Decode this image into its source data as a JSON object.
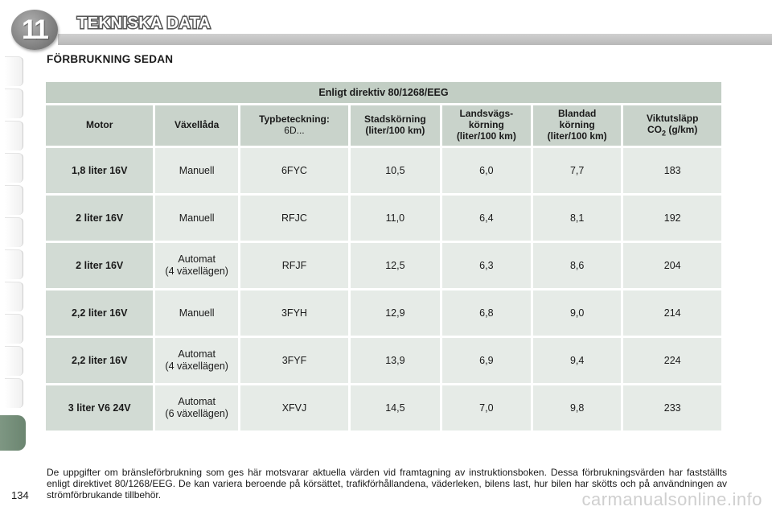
{
  "header": {
    "chapter_number": "11",
    "title": "TEKNISKA DATA"
  },
  "section": {
    "title": "FÖRBRUKNING SEDAN"
  },
  "table": {
    "directive": "Enligt direktiv 80/1268/EEG",
    "columns": [
      {
        "lines": [
          "Motor"
        ]
      },
      {
        "lines": [
          "Växellåda"
        ]
      },
      {
        "lines": [
          "Typbeteckning:"
        ],
        "sub": "6D..."
      },
      {
        "lines": [
          "Stadskörning",
          "(liter/100 km)"
        ]
      },
      {
        "lines": [
          "Landsvägs-",
          "körning",
          "(liter/100 km)"
        ]
      },
      {
        "lines": [
          "Blandad",
          "körning",
          "(liter/100 km)"
        ]
      },
      {
        "lines": [
          "Viktutsläpp",
          "CO2 (g/km)"
        ]
      }
    ],
    "rows": [
      {
        "motor": "1,8 liter 16V",
        "gearbox": [
          "Manuell"
        ],
        "type": "6FYC",
        "city": "10,5",
        "highway": "6,0",
        "mixed": "7,7",
        "co2": "183"
      },
      {
        "motor": "2 liter 16V",
        "gearbox": [
          "Manuell"
        ],
        "type": "RFJC",
        "city": "11,0",
        "highway": "6,4",
        "mixed": "8,1",
        "co2": "192"
      },
      {
        "motor": "2 liter 16V",
        "gearbox": [
          "Automat",
          "(4 växellägen)"
        ],
        "type": "RFJF",
        "city": "12,5",
        "highway": "6,3",
        "mixed": "8,6",
        "co2": "204"
      },
      {
        "motor": "2,2 liter 16V",
        "gearbox": [
          "Manuell"
        ],
        "type": "3FYH",
        "city": "12,9",
        "highway": "6,8",
        "mixed": "9,0",
        "co2": "214"
      },
      {
        "motor": "2,2 liter 16V",
        "gearbox": [
          "Automat",
          "(4 växellägen)"
        ],
        "type": "3FYF",
        "city": "13,9",
        "highway": "6,9",
        "mixed": "9,4",
        "co2": "224"
      },
      {
        "motor": "3 liter V6 24V",
        "gearbox": [
          "Automat",
          "(6 växellägen)"
        ],
        "type": "XFVJ",
        "city": "14,5",
        "highway": "7,0",
        "mixed": "9,8",
        "co2": "233"
      }
    ]
  },
  "footnote": "De uppgifter om bränsleförbrukning som ges här motsvarar aktuella värden vid framtagning av instruktionsboken. Dessa förbrukningsvärden har fastställts enligt direktivet 80/1268/EEG. De kan variera beroende på körsättet, trafikförhållandena, väderleken, bilens last, hur bilen har skötts och på användningen av strömförbrukande tillbehör.",
  "page_number": "134",
  "watermark": "carmanualsonline.info"
}
